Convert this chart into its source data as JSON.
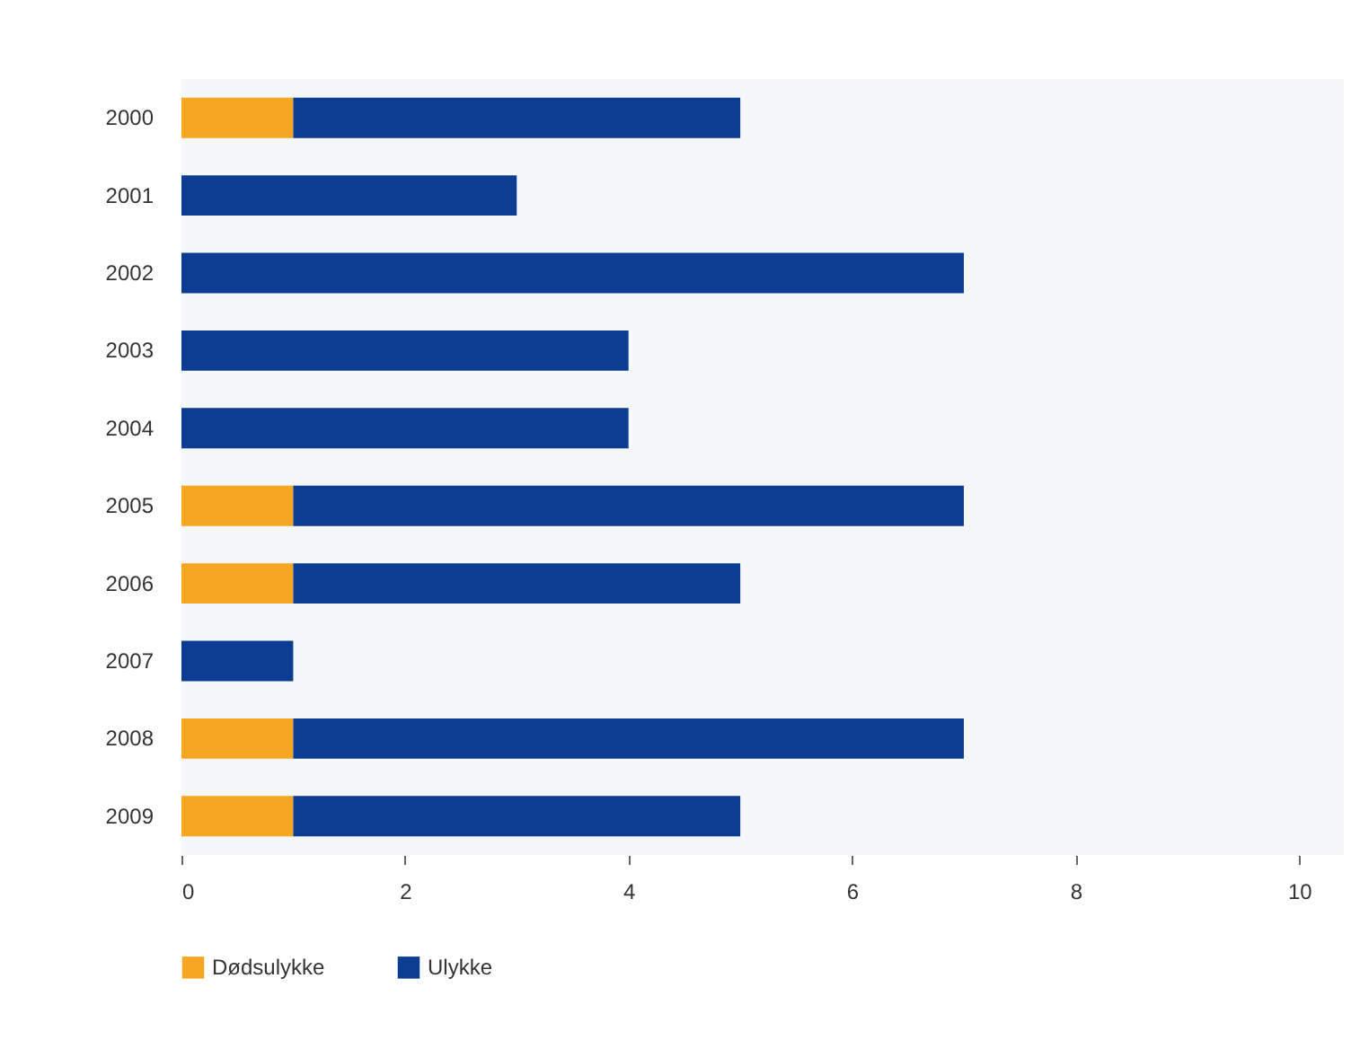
{
  "chart_data": {
    "type": "bar",
    "orientation": "horizontal",
    "stacked": true,
    "categories": [
      "2000",
      "2001",
      "2002",
      "2003",
      "2004",
      "2005",
      "2006",
      "2007",
      "2008",
      "2009"
    ],
    "series": [
      {
        "name": "Dødsulykke",
        "color": "#f6a623",
        "values": [
          1,
          null,
          null,
          null,
          null,
          1,
          1,
          null,
          1,
          1
        ]
      },
      {
        "name": "Ulykke",
        "color": "#0b3d93",
        "values": [
          4,
          3,
          7,
          4,
          4,
          6,
          4,
          1,
          6,
          4
        ]
      }
    ],
    "xlim": [
      0,
      10.4
    ],
    "xticks": [
      0,
      2,
      4,
      6,
      8,
      10
    ],
    "grid": false,
    "legend": "bottom"
  }
}
